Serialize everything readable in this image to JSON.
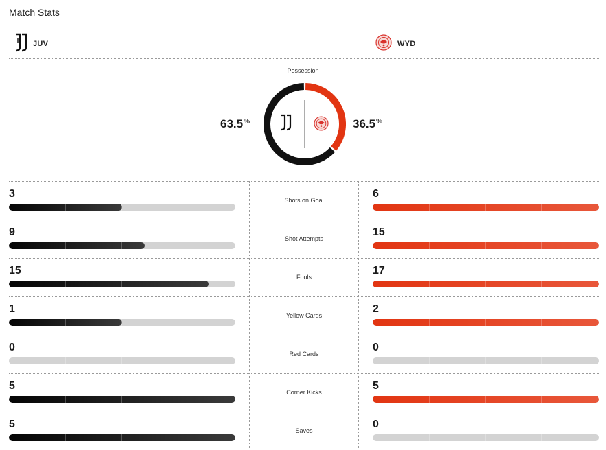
{
  "header": {
    "title": "Match Stats"
  },
  "teams": {
    "home": {
      "abbr": "JUV",
      "color": "#111111",
      "logo_icon": "juventus-logo"
    },
    "away": {
      "abbr": "WYD",
      "color": "#e23512",
      "logo_icon": "wydad-logo"
    }
  },
  "possession": {
    "label": "Possession",
    "home": 63.5,
    "away": 36.5,
    "home_text": "63.5",
    "away_text": "36.5",
    "unit": "%"
  },
  "stats": [
    {
      "label": "Shots on Goal",
      "home": 3,
      "away": 6,
      "home_text": "3",
      "away_text": "6"
    },
    {
      "label": "Shot Attempts",
      "home": 9,
      "away": 15,
      "home_text": "9",
      "away_text": "15"
    },
    {
      "label": "Fouls",
      "home": 15,
      "away": 17,
      "home_text": "15",
      "away_text": "17"
    },
    {
      "label": "Yellow Cards",
      "home": 1,
      "away": 2,
      "home_text": "1",
      "away_text": "2"
    },
    {
      "label": "Red Cards",
      "home": 0,
      "away": 0,
      "home_text": "0",
      "away_text": "0"
    },
    {
      "label": "Corner Kicks",
      "home": 5,
      "away": 5,
      "home_text": "5",
      "away_text": "5"
    },
    {
      "label": "Saves",
      "home": 5,
      "away": 0,
      "home_text": "5",
      "away_text": "0"
    }
  ]
}
